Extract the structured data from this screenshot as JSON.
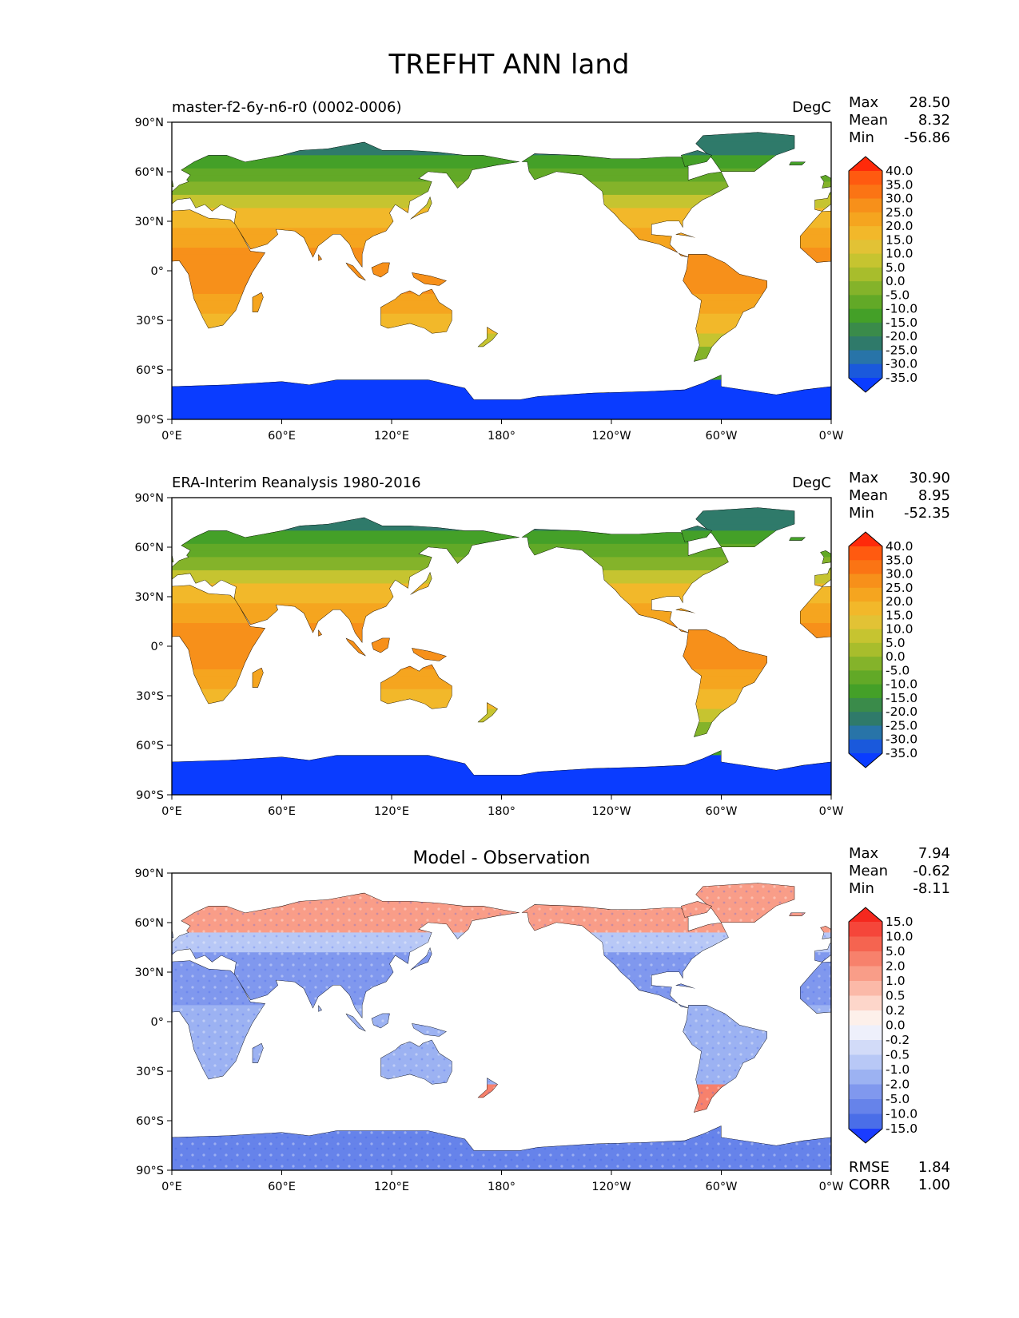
{
  "figure_title": "TREFHT ANN land",
  "x_ticks": [
    "0°E",
    "60°E",
    "120°E",
    "180°",
    "120°W",
    "60°W",
    "0°W"
  ],
  "y_ticks": [
    "90°N",
    "60°N",
    "30°N",
    "0°",
    "30°S",
    "60°S",
    "90°S"
  ],
  "panels": [
    {
      "left_title": "master-f2-6y-n6-r0 (0002-0006)",
      "center_title": "",
      "units": "DegC",
      "stats": [
        {
          "label": "Max",
          "value": "28.50"
        },
        {
          "label": "Mean",
          "value": "8.32"
        },
        {
          "label": "Min",
          "value": "-56.86"
        }
      ],
      "extra_stats": [],
      "colorbar": {
        "levels": [
          "40.0",
          "35.0",
          "30.0",
          "25.0",
          "20.0",
          "15.0",
          "10.0",
          "5.0",
          "0.0",
          "-5.0",
          "-10.0",
          "-15.0",
          "-20.0",
          "-25.0",
          "-30.0",
          "-35.0"
        ],
        "colors": [
          "#ff2a0a",
          "#ff5a10",
          "#fb7414",
          "#f7901a",
          "#f5a51f",
          "#f2b82a",
          "#e2c235",
          "#c6c430",
          "#a8bd2c",
          "#84b32a",
          "#62a927",
          "#44a028",
          "#3a8b4a",
          "#2f7a6a",
          "#2874a8",
          "#1a59dc",
          "#0a3cff"
        ]
      },
      "palette": "abs",
      "chart_data": {
        "type": "heatmap",
        "title": "master-f2-6y-n6-r0 (0002-0006)",
        "units": "DegC",
        "xlim": [
          0,
          360
        ],
        "ylim": [
          -90,
          90
        ],
        "x_ticks": [
          "0°E",
          "60°E",
          "120°E",
          "180°",
          "120°W",
          "60°W",
          "0°W"
        ],
        "y_ticks": [
          "90°N",
          "60°N",
          "30°N",
          "0°",
          "30°S",
          "60°S",
          "90°S"
        ],
        "max": 28.5,
        "mean": 8.32,
        "min": -56.86,
        "colorbar_levels": [
          40,
          35,
          30,
          25,
          20,
          15,
          10,
          5,
          0,
          -5,
          -10,
          -15,
          -20,
          -25,
          -30,
          -35
        ]
      }
    },
    {
      "left_title": "ERA-Interim Reanalysis 1980-2016",
      "center_title": "",
      "units": "DegC",
      "stats": [
        {
          "label": "Max",
          "value": "30.90"
        },
        {
          "label": "Mean",
          "value": "8.95"
        },
        {
          "label": "Min",
          "value": "-52.35"
        }
      ],
      "extra_stats": [],
      "colorbar": {
        "levels": [
          "40.0",
          "35.0",
          "30.0",
          "25.0",
          "20.0",
          "15.0",
          "10.0",
          "5.0",
          "0.0",
          "-5.0",
          "-10.0",
          "-15.0",
          "-20.0",
          "-25.0",
          "-30.0",
          "-35.0"
        ],
        "colors": [
          "#ff2a0a",
          "#ff5a10",
          "#fb7414",
          "#f7901a",
          "#f5a51f",
          "#f2b82a",
          "#e2c235",
          "#c6c430",
          "#a8bd2c",
          "#84b32a",
          "#62a927",
          "#44a028",
          "#3a8b4a",
          "#2f7a6a",
          "#2874a8",
          "#1a59dc",
          "#0a3cff"
        ]
      },
      "palette": "abs",
      "chart_data": {
        "type": "heatmap",
        "title": "ERA-Interim Reanalysis 1980-2016",
        "units": "DegC",
        "xlim": [
          0,
          360
        ],
        "ylim": [
          -90,
          90
        ],
        "x_ticks": [
          "0°E",
          "60°E",
          "120°E",
          "180°",
          "120°W",
          "60°W",
          "0°W"
        ],
        "y_ticks": [
          "90°N",
          "60°N",
          "30°N",
          "0°",
          "30°S",
          "60°S",
          "90°S"
        ],
        "max": 30.9,
        "mean": 8.95,
        "min": -52.35,
        "colorbar_levels": [
          40,
          35,
          30,
          25,
          20,
          15,
          10,
          5,
          0,
          -5,
          -10,
          -15,
          -20,
          -25,
          -30,
          -35
        ]
      }
    },
    {
      "left_title": "",
      "center_title": "Model - Observation",
      "units": "",
      "stats": [
        {
          "label": "Max",
          "value": "7.94"
        },
        {
          "label": "Mean",
          "value": "-0.62"
        },
        {
          "label": "Min",
          "value": "-8.11"
        }
      ],
      "extra_stats": [
        {
          "label": "RMSE",
          "value": "1.84"
        },
        {
          "label": "CORR",
          "value": "1.00"
        }
      ],
      "colorbar": {
        "levels": [
          "15.0",
          "10.0",
          "5.0",
          "2.0",
          "1.0",
          "0.5",
          "0.2",
          "0.0",
          "-0.2",
          "-0.5",
          "-1.0",
          "-2.0",
          "-5.0",
          "-10.0",
          "-15.0"
        ],
        "colors": [
          "#f5281e",
          "#f5463a",
          "#f56450",
          "#f7816c",
          "#f99d88",
          "#fbb9a8",
          "#fdd6ca",
          "#fdf0ea",
          "#eef0fb",
          "#d2dbf8",
          "#b8c8f6",
          "#9cb2f2",
          "#8098ee",
          "#6683ea",
          "#4a6ee8",
          "#1a3cff"
        ]
      },
      "palette": "diff",
      "chart_data": {
        "type": "heatmap",
        "title": "Model - Observation",
        "xlim": [
          0,
          360
        ],
        "ylim": [
          -90,
          90
        ],
        "x_ticks": [
          "0°E",
          "60°E",
          "120°E",
          "180°",
          "120°W",
          "60°W",
          "0°W"
        ],
        "y_ticks": [
          "90°N",
          "60°N",
          "30°N",
          "0°",
          "30°S",
          "60°S",
          "90°S"
        ],
        "max": 7.94,
        "mean": -0.62,
        "min": -8.11,
        "rmse": 1.84,
        "corr": 1.0,
        "colorbar_levels": [
          15,
          10,
          5,
          2,
          1,
          0.5,
          0.2,
          0,
          -0.2,
          -0.5,
          -1,
          -2,
          -5,
          -10,
          -15
        ]
      }
    }
  ]
}
